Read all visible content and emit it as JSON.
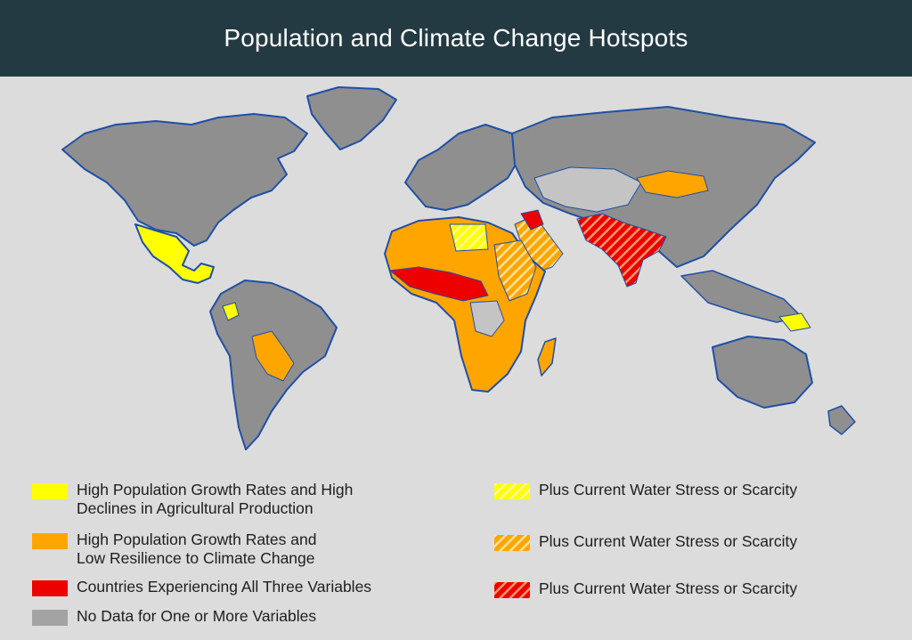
{
  "title": "Population and Climate Change Hotspots",
  "colors": {
    "header_bg": "#243a43",
    "background": "#dcdcdc",
    "land_no_data": "#8f8f8f",
    "land_light": "#c4c4c4",
    "coast": "#1f4fa6",
    "border": "#ffffff",
    "yellow": "#ffff00",
    "orange": "#ffa500",
    "red": "#ee0000"
  },
  "legend": {
    "left": [
      {
        "lines": [
          "High Population Growth Rates and High",
          "Declines in Agricultural Production"
        ],
        "swatch": "yellow"
      },
      {
        "lines": [
          "High Population Growth Rates and",
          "Low Resilience to Climate Change"
        ],
        "swatch": "orange"
      },
      {
        "lines": [
          "Countries Experiencing All Three Variables"
        ],
        "swatch": "red"
      },
      {
        "lines": [
          "No Data for One or More Variables"
        ],
        "swatch": "gray"
      }
    ],
    "right": [
      {
        "lines": [
          "Plus Current Water Stress or Scarcity"
        ],
        "swatch": "yellow-hatched"
      },
      {
        "lines": [
          "Plus Current Water Stress or Scarcity"
        ],
        "swatch": "orange-hatched"
      },
      {
        "lines": [
          "Plus Current Water Stress or Scarcity"
        ],
        "swatch": "red-hatched"
      }
    ]
  }
}
